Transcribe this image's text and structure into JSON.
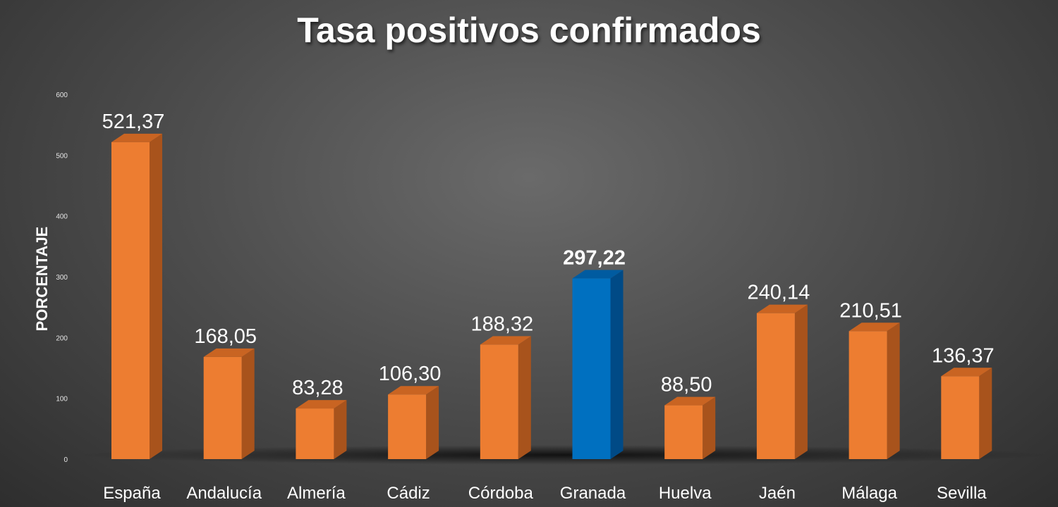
{
  "chart_data": {
    "type": "bar",
    "title": "Tasa positivos confirmados",
    "ylabel": "PORCENTAJE",
    "xlabel": "",
    "ylim": [
      0,
      600
    ],
    "yticks": [
      0,
      100,
      200,
      300,
      400,
      500,
      600
    ],
    "grid": false,
    "legend": "none",
    "categories": [
      "España",
      "Andalucía",
      "Almería",
      "Cádiz",
      "Córdoba",
      "Granada",
      "Huelva",
      "Jaén",
      "Málaga",
      "Sevilla"
    ],
    "values": [
      521.37,
      168.05,
      83.28,
      106.3,
      188.32,
      297.22,
      88.5,
      240.14,
      210.51,
      136.37
    ],
    "data_labels": [
      "521,37",
      "168,05",
      "83,28",
      "106,30",
      "188,32",
      "297,22",
      "88,50",
      "240,14",
      "210,51",
      "136,37"
    ],
    "highlight_index": 5,
    "colors": {
      "bar": "#ed7d31",
      "bar_side": "#a8531c",
      "bar_top": "#c96422",
      "highlight": "#0070c0",
      "highlight_side": "#004a86",
      "highlight_top": "#005ba0"
    }
  }
}
